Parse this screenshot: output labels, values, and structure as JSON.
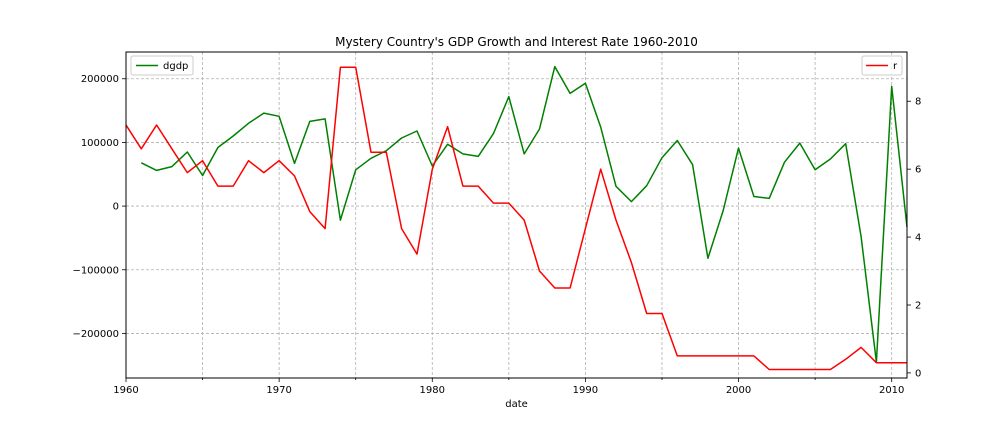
{
  "chart_data": {
    "type": "line",
    "title": "Mystery Country's GDP Growth and Interest Rate 1960-2010",
    "xlabel": "date",
    "xlim": [
      1960,
      2011
    ],
    "x_ticks": [
      1960,
      1970,
      1980,
      1990,
      2000,
      2010
    ],
    "x_ticks_labels": [
      "1960",
      "1970",
      "1980",
      "1990",
      "2000",
      "2010"
    ],
    "y_left": {
      "ylim": [
        -270000,
        242000
      ],
      "ticks": [
        -200000,
        -100000,
        0,
        100000,
        200000
      ],
      "tick_labels": [
        "−200000",
        "−100000",
        "0",
        "100000",
        "200000"
      ]
    },
    "y_right": {
      "ylim": [
        -0.15,
        9.45
      ],
      "ticks": [
        0,
        2,
        4,
        6,
        8
      ],
      "tick_labels": [
        "0",
        "2",
        "4",
        "6",
        "8"
      ]
    },
    "grid": true,
    "series": [
      {
        "name": "dgdp",
        "axis": "left",
        "color": "#008000",
        "legend_position": "upper left",
        "x": [
          1961,
          1962,
          1963,
          1964,
          1965,
          1966,
          1967,
          1968,
          1969,
          1970,
          1971,
          1972,
          1973,
          1974,
          1975,
          1976,
          1977,
          1978,
          1979,
          1980,
          1981,
          1982,
          1983,
          1984,
          1985,
          1986,
          1987,
          1988,
          1989,
          1990,
          1991,
          1992,
          1993,
          1994,
          1995,
          1996,
          1997,
          1998,
          1999,
          2000,
          2001,
          2002,
          2003,
          2004,
          2005,
          2006,
          2007,
          2008,
          2009,
          2010,
          2011
        ],
        "values": [
          68000,
          56000,
          62000,
          85000,
          48000,
          92000,
          110000,
          130000,
          146000,
          141000,
          67000,
          133000,
          137000,
          -22000,
          57000,
          75000,
          87000,
          107000,
          118000,
          63000,
          97000,
          82000,
          78000,
          114000,
          172000,
          82000,
          121000,
          219000,
          177000,
          193000,
          124000,
          31000,
          7000,
          32000,
          76000,
          103000,
          65000,
          -82000,
          -7000,
          91000,
          15000,
          12000,
          69000,
          99000,
          57000,
          74000,
          98000,
          -48000,
          -245000,
          188000,
          -33000
        ]
      },
      {
        "name": "r",
        "axis": "right",
        "color": "#ff0000",
        "legend_position": "upper right",
        "x": [
          1960,
          1961,
          1962,
          1963,
          1964,
          1965,
          1966,
          1967,
          1968,
          1969,
          1970,
          1971,
          1972,
          1973,
          1974,
          1975,
          1976,
          1977,
          1978,
          1979,
          1980,
          1981,
          1982,
          1983,
          1984,
          1985,
          1986,
          1987,
          1988,
          1989,
          1990,
          1991,
          1992,
          1993,
          1994,
          1995,
          1996,
          1997,
          1998,
          1999,
          2000,
          2001,
          2002,
          2003,
          2004,
          2005,
          2006,
          2007,
          2008,
          2009,
          2010,
          2011
        ],
        "values": [
          7.3,
          6.6,
          7.3,
          6.6,
          5.9,
          6.25,
          5.5,
          5.5,
          6.25,
          5.9,
          6.25,
          5.8,
          4.75,
          4.25,
          9.0,
          9.0,
          6.5,
          6.5,
          4.25,
          3.5,
          6.0,
          7.25,
          5.5,
          5.5,
          5.0,
          5.0,
          4.5,
          3.0,
          2.5,
          2.5,
          4.25,
          6.0,
          4.5,
          3.25,
          1.75,
          1.75,
          0.5,
          0.5,
          0.5,
          0.5,
          0.5,
          0.5,
          0.1,
          0.1,
          0.1,
          0.1,
          0.1,
          0.4,
          0.75,
          0.3,
          0.3,
          0.3
        ]
      }
    ]
  }
}
